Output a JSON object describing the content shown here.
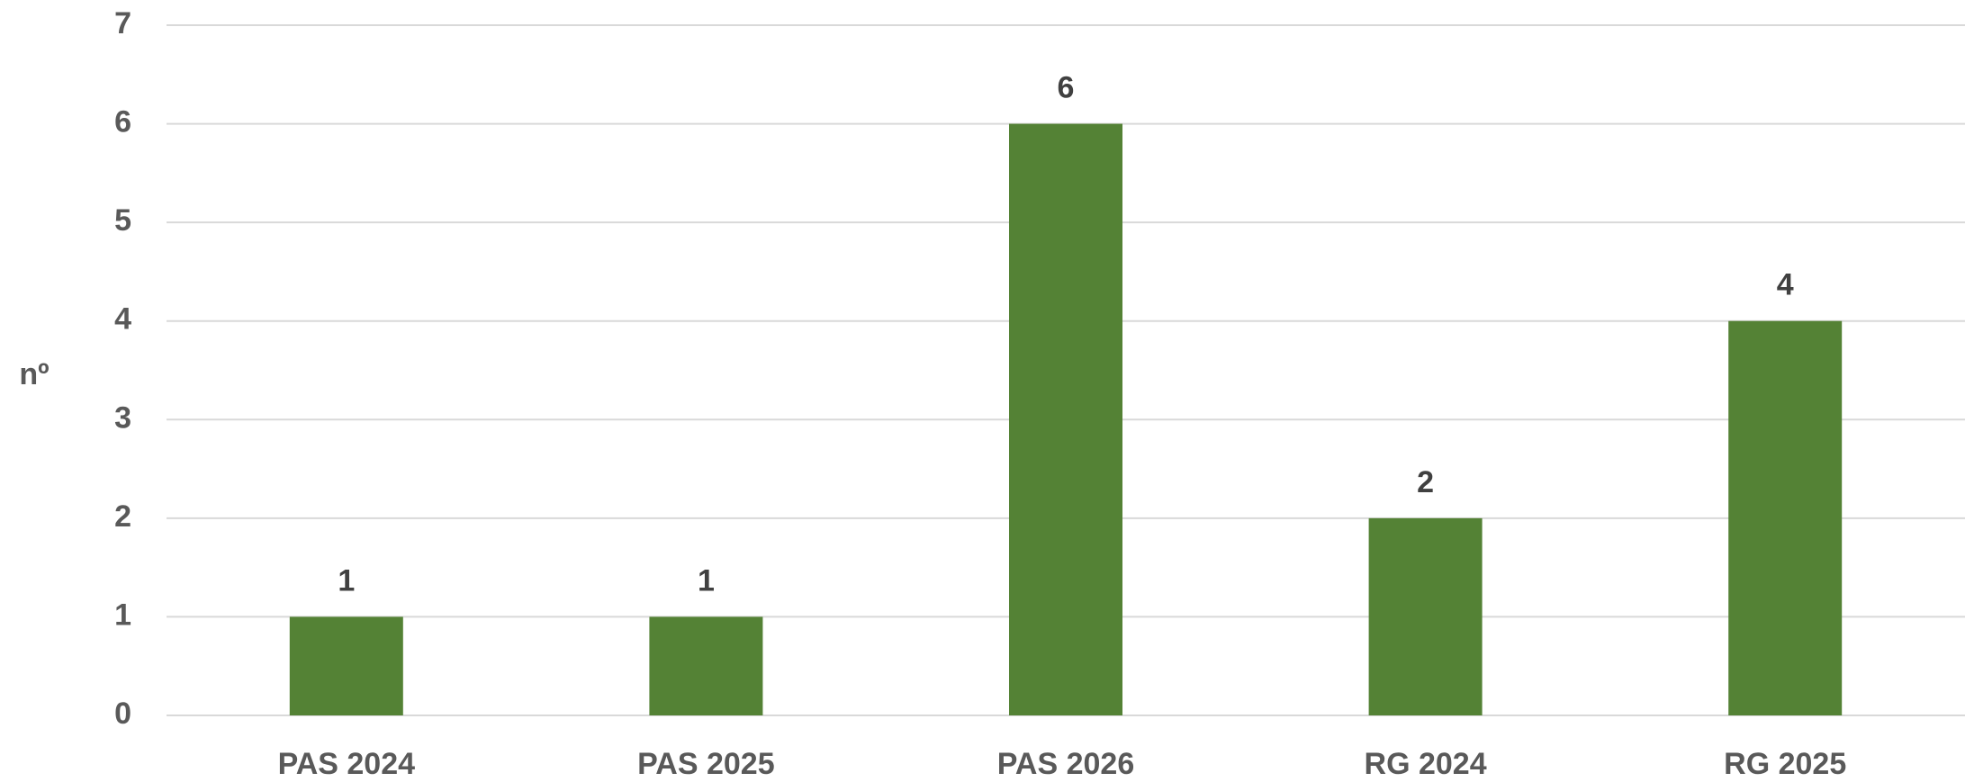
{
  "chart_data": {
    "type": "bar",
    "ylabel": "nº",
    "categories": [
      "PAS 2024",
      "PAS 2025",
      "PAS 2026",
      "RG 2024",
      "RG 2025"
    ],
    "values": [
      1,
      1,
      6,
      2,
      4
    ],
    "color": "#548235",
    "ylim": [
      0,
      7
    ],
    "yticks": [
      0,
      1,
      2,
      3,
      4,
      5,
      6,
      7
    ],
    "grid": true
  }
}
